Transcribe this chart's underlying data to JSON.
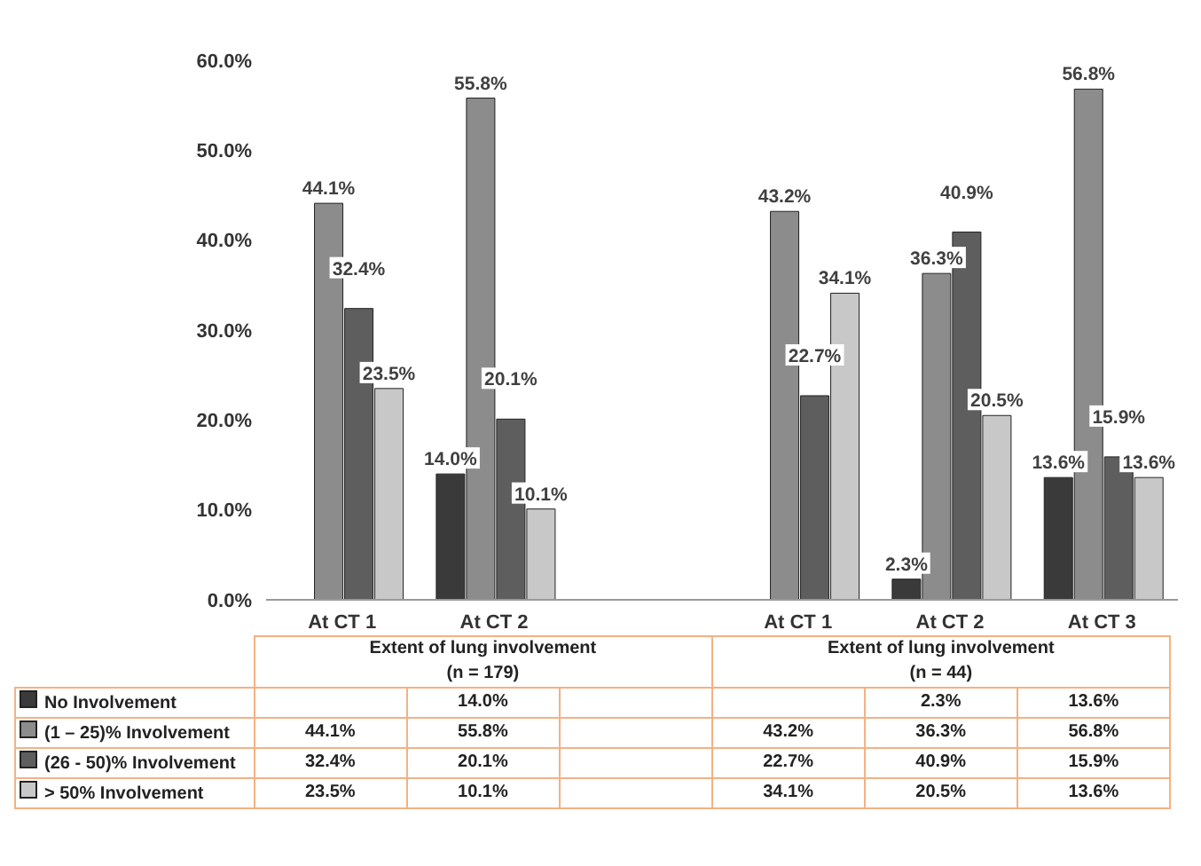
{
  "chart_data": {
    "type": "bar",
    "categories": [
      "At CT 1",
      "At CT 2",
      null,
      "At CT 1",
      "At CT 2",
      "At CT 3"
    ],
    "series": [
      {
        "name": "No Involvement",
        "color": "#3a3a3a",
        "values": [
          null,
          14.0,
          null,
          null,
          2.3,
          13.6
        ],
        "value_labels": [
          null,
          "14.0%",
          null,
          null,
          "2.3%",
          "13.6%"
        ]
      },
      {
        "name": "(1 – 25)% Involvement",
        "color": "#8c8c8c",
        "values": [
          44.1,
          55.8,
          null,
          43.2,
          36.3,
          56.8
        ],
        "value_labels": [
          "44.1%",
          "55.8%",
          null,
          "43.2%",
          "36.3%",
          "56.8%"
        ]
      },
      {
        "name": "(26 - 50)% Involvement",
        "color": "#5e5e5e",
        "values": [
          32.4,
          20.1,
          null,
          22.7,
          40.9,
          15.9
        ],
        "value_labels": [
          "32.4%",
          "20.1%",
          null,
          "22.7%",
          "40.9%",
          "15.9%"
        ]
      },
      {
        "name": "> 50% Involvement",
        "color": "#c8c8c8",
        "values": [
          23.5,
          10.1,
          null,
          34.1,
          20.5,
          13.6
        ],
        "value_labels": [
          "23.5%",
          "10.1%",
          null,
          "34.1%",
          "20.5%",
          "13.6%"
        ]
      }
    ],
    "ylim": [
      0,
      60
    ],
    "yticks": [
      {
        "value": 0,
        "label": "0.0%"
      },
      {
        "value": 10,
        "label": "10.0%"
      },
      {
        "value": 20,
        "label": "20.0%"
      },
      {
        "value": 30,
        "label": "30.0%"
      },
      {
        "value": 40,
        "label": "40.0%"
      },
      {
        "value": 50,
        "label": "50.0%"
      },
      {
        "value": 60,
        "label": "60.0%"
      }
    ],
    "annotations": [
      "Extent of lung involvement\n(n = 179)",
      "Extent of lung involvement\n(n = 44)"
    ],
    "legend": "bottom",
    "grid": false
  }
}
